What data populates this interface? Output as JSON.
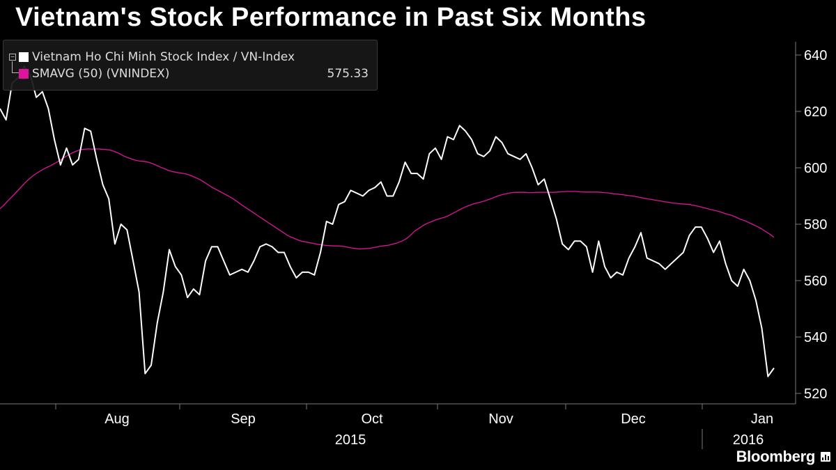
{
  "title": "Vietnam's Stock Performance in Past Six Months",
  "colors": {
    "background": "#000000",
    "index_line": "#ffffff",
    "sma_line": "#e0139c",
    "axis": "#7a7a7a"
  },
  "legend": {
    "series_1_label": "Vietnam Ho Chi Minh Stock Index / VN-Index",
    "series_2_label": "SMAVG (50) (VNINDEX)",
    "series_2_value": "575.33"
  },
  "brand": "Bloomberg",
  "chart_data": {
    "type": "line",
    "title": "Vietnam's Stock Performance in Past Six Months",
    "xlabel": "",
    "ylabel": "",
    "ylim": [
      516,
      646
    ],
    "yticks": [
      520,
      540,
      560,
      580,
      600,
      620,
      640
    ],
    "year_labels": [
      "2015",
      "2016"
    ],
    "month_labels": [
      "Aug",
      "Sep",
      "Oct",
      "Nov",
      "Dec",
      "Jan"
    ],
    "grid": false,
    "legend_position": "top-left",
    "series": [
      {
        "name": "Vietnam Ho Chi Minh Stock Index / VN-Index",
        "values": [
          621,
          617,
          630,
          632,
          636,
          633,
          625,
          627,
          621,
          610,
          601,
          607,
          601,
          603,
          614,
          613,
          603,
          594,
          589,
          573,
          580,
          578,
          567,
          556,
          527,
          530,
          545,
          556,
          571,
          565,
          562,
          554,
          557,
          555,
          567,
          572,
          572,
          567,
          562,
          563,
          564,
          563,
          567,
          572,
          573,
          572,
          570,
          570,
          565,
          561,
          563,
          563,
          562,
          570,
          581,
          580,
          587,
          588,
          592,
          591,
          590,
          592,
          593,
          595,
          590,
          590,
          595,
          602,
          598,
          598,
          596,
          605,
          607,
          603,
          611,
          610,
          615,
          613,
          610,
          605,
          604,
          606,
          611,
          609,
          605,
          604,
          603,
          605,
          600,
          594,
          596,
          589,
          582,
          573,
          571,
          574,
          574,
          572,
          563,
          574,
          565,
          561,
          563,
          562,
          568,
          572,
          577,
          568,
          567,
          566,
          564,
          566,
          568,
          570,
          576,
          579,
          579,
          575,
          570,
          574,
          566,
          560,
          558,
          564,
          560,
          553,
          543,
          526,
          529
        ]
      },
      {
        "name": "SMAVG (50) (VNINDEX)",
        "value_label": "575.33",
        "values": [
          585.5,
          586.9,
          588.5,
          590.0,
          591.6,
          593.2,
          594.8,
          596.2,
          597.4,
          598.4,
          599.3,
          600.1,
          600.8,
          601.6,
          602.5,
          603.5,
          604.4,
          605.2,
          605.9,
          606.4,
          606.6,
          606.7,
          606.6,
          606.7,
          606.6,
          606.5,
          606.3,
          605.8,
          605.2,
          604.4,
          603.7,
          603.2,
          602.7,
          602.4,
          602.3,
          602.0,
          601.5,
          600.9,
          600.2,
          599.6,
          599.0,
          598.6,
          598.3,
          598.1,
          597.8,
          597.3,
          596.7,
          596.0,
          595.2,
          594.2,
          593.2,
          592.4,
          591.6,
          590.8,
          590.0,
          589.1,
          588.1,
          587.0,
          586.0,
          585.0,
          584.0,
          583.0,
          582.0,
          581.0,
          580.0,
          579.0,
          578.0,
          577.0,
          576.0,
          575.3,
          574.7,
          574.1,
          573.8,
          573.5,
          573.2,
          572.9,
          572.7,
          572.5,
          572.4,
          572.3,
          572.3,
          572.2,
          571.9,
          571.6,
          571.4,
          571.2,
          571.3,
          571.4,
          571.6,
          571.9,
          572.2,
          572.4,
          572.6,
          573.0,
          573.4,
          574.0,
          574.8,
          576.0,
          577.5,
          578.5,
          579.5,
          580.3,
          580.9,
          581.5,
          582.0,
          582.4,
          583.0,
          583.8,
          584.6,
          585.4,
          586.1,
          586.7,
          587.2,
          587.6,
          588.0,
          588.5,
          589.0,
          589.6,
          590.2,
          590.6,
          590.9,
          591.2,
          591.3,
          591.3,
          591.3,
          591.2,
          591.2,
          591.3,
          591.3,
          591.3,
          591.3,
          591.3,
          591.4,
          591.5,
          591.6,
          591.6,
          591.6,
          591.5,
          591.4,
          591.4,
          591.4,
          591.4,
          591.3,
          591.2,
          591.0,
          590.8,
          590.7,
          590.5,
          590.3,
          590.1,
          589.9,
          589.6,
          589.3,
          589.0,
          588.8,
          588.5,
          588.3,
          588.0,
          587.8,
          587.5,
          587.4,
          587.2,
          587.1,
          587.0,
          586.7,
          586.4,
          586.0,
          585.6,
          585.2,
          584.9,
          584.5,
          584.0,
          583.5,
          583.1,
          582.5,
          581.8,
          581.3,
          580.6,
          579.9,
          579.2,
          578.4,
          577.4,
          576.5,
          575.33
        ]
      }
    ]
  }
}
